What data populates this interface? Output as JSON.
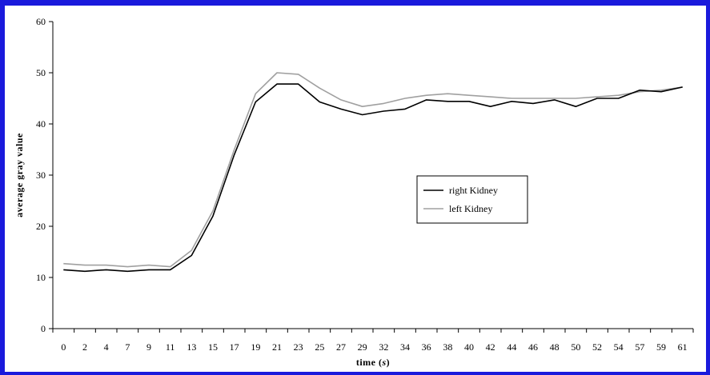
{
  "colors": {
    "background": "#1a1adc",
    "plot_background": "#ffffff",
    "right_series": "#000000",
    "left_series": "#a0a0a0"
  },
  "chart_data": {
    "type": "line",
    "title": "",
    "xlabel_parts": [
      "time (",
      "s",
      ")"
    ],
    "ylabel": "average gray value",
    "ylim": [
      0,
      60
    ],
    "yticks": [
      0,
      10,
      20,
      30,
      40,
      50,
      60
    ],
    "grid": false,
    "legend_position": "center-right",
    "categories": [
      "0",
      "2",
      "4",
      "7",
      "9",
      "11",
      "13",
      "15",
      "17",
      "19",
      "21",
      "23",
      "25",
      "27",
      "29",
      "32",
      "34",
      "36",
      "38",
      "40",
      "42",
      "44",
      "46",
      "48",
      "50",
      "52",
      "54",
      "57",
      "59",
      "61"
    ],
    "series": [
      {
        "name": "right Kidney",
        "color": "#000000",
        "values": [
          11.5,
          11.2,
          11.5,
          11.2,
          11.5,
          11.5,
          14.3,
          22.0,
          34.0,
          44.3,
          47.8,
          47.8,
          44.3,
          42.9,
          41.8,
          42.5,
          42.9,
          44.7,
          44.4,
          44.4,
          43.4,
          44.4,
          44.0,
          44.7,
          43.4,
          45.0,
          45.0,
          46.6,
          46.3,
          47.2
        ]
      },
      {
        "name": "left Kidney",
        "color": "#a0a0a0",
        "values": [
          12.7,
          12.4,
          12.4,
          12.1,
          12.4,
          12.1,
          15.3,
          23.0,
          35.0,
          45.9,
          50.0,
          49.7,
          47.0,
          44.7,
          43.4,
          44.0,
          45.0,
          45.6,
          45.9,
          45.6,
          45.3,
          45.0,
          45.0,
          45.0,
          45.0,
          45.3,
          45.6,
          46.3,
          46.6,
          47.2
        ]
      }
    ]
  }
}
